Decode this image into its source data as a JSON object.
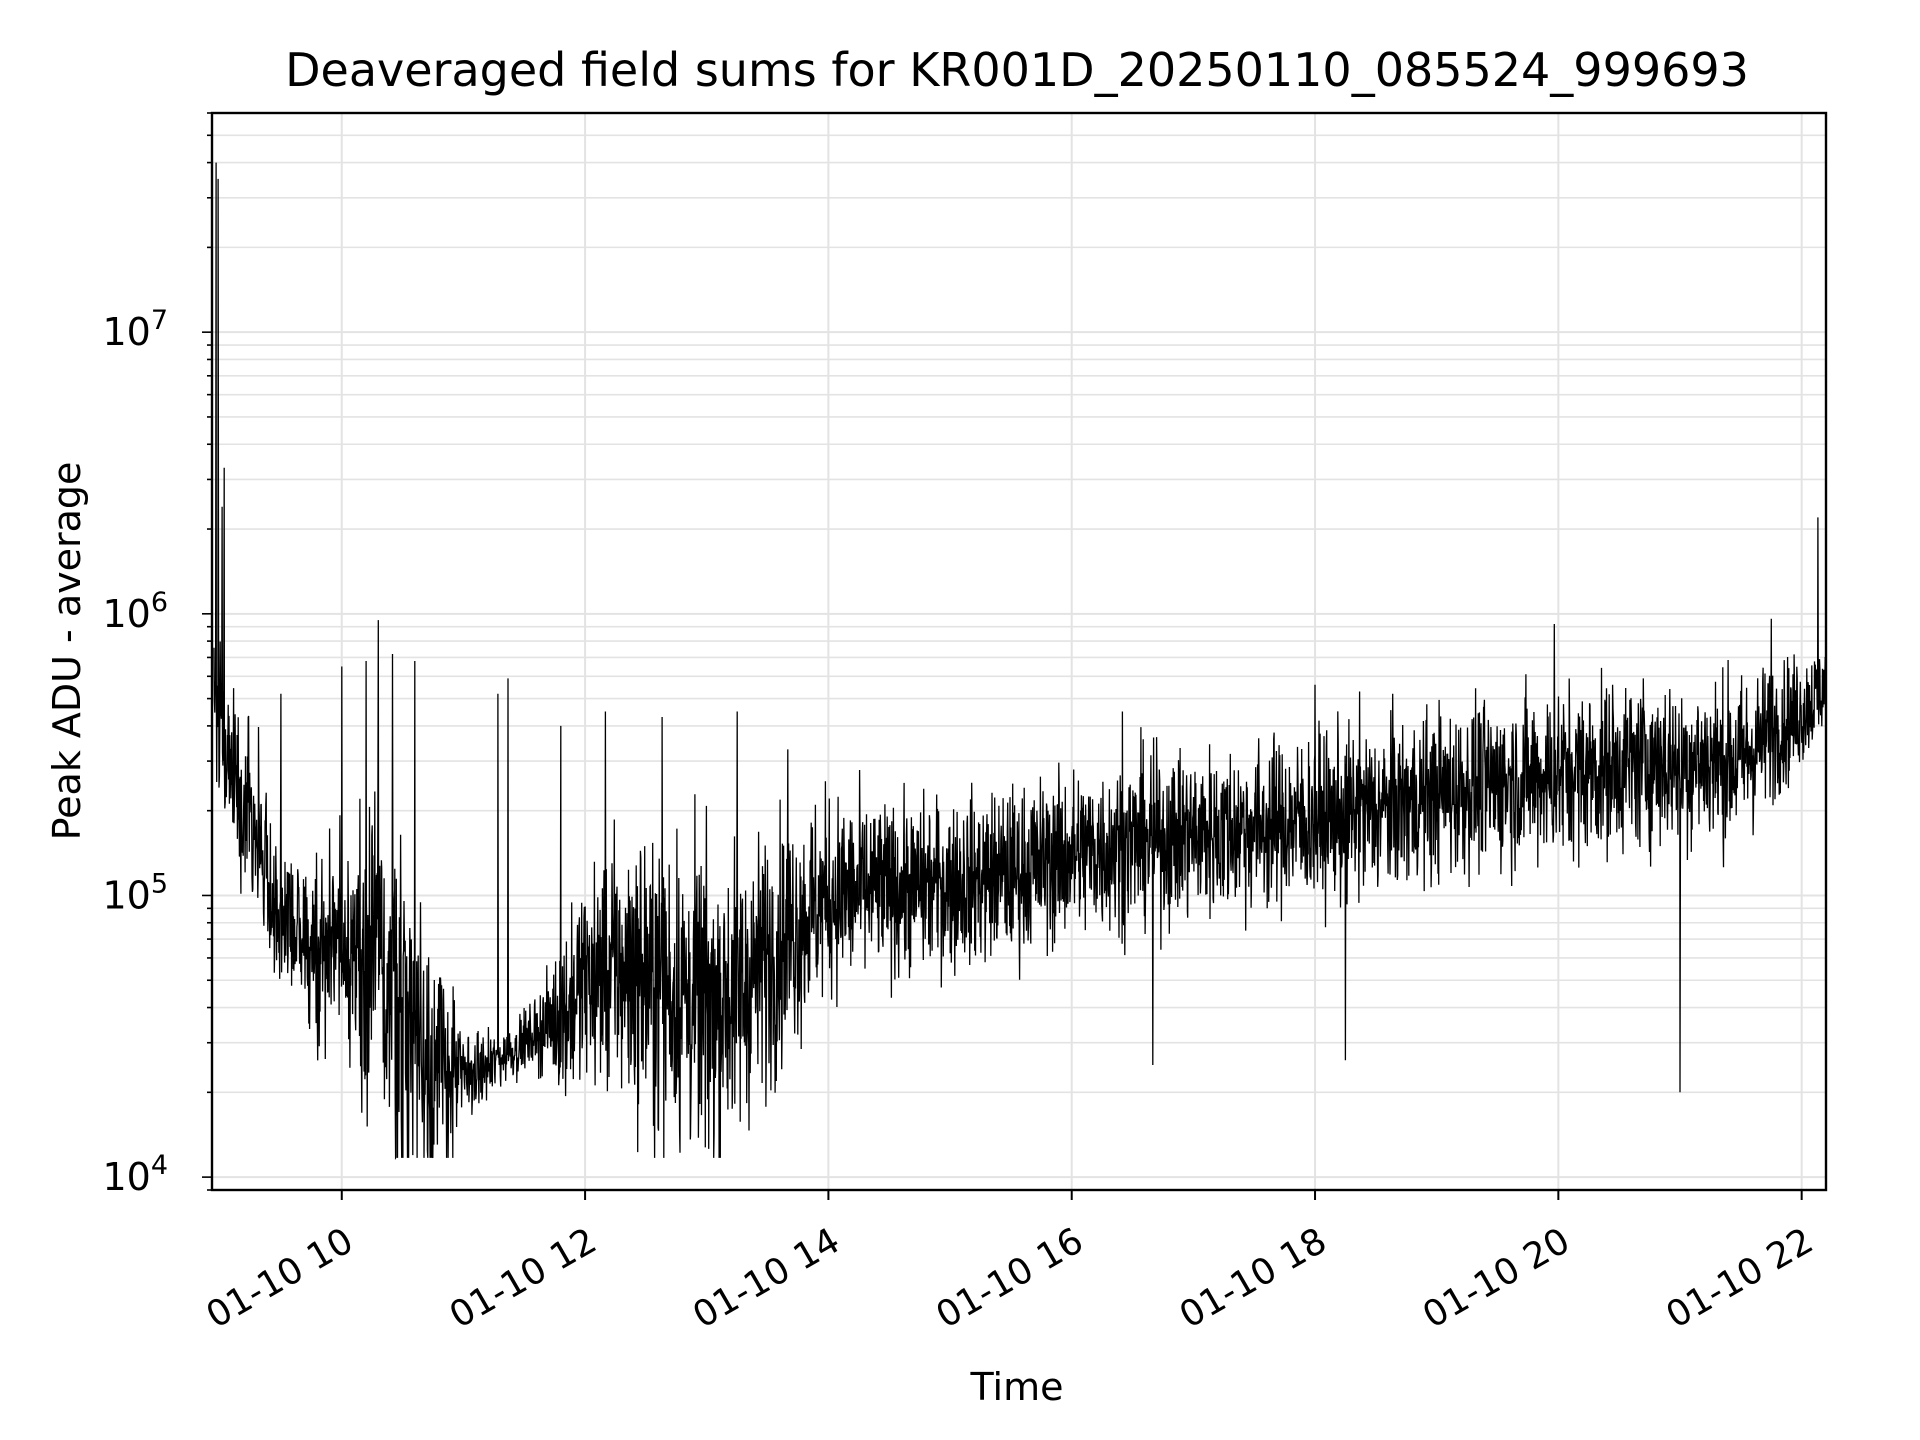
{
  "chart_data": {
    "type": "line",
    "title": "Deaveraged field sums for KR001D_20250110_085524_999693",
    "xlabel": "Time",
    "ylabel": "Peak ADU - average",
    "x_ticks": [
      "01-10 10",
      "01-10 12",
      "01-10 14",
      "01-10 16",
      "01-10 18",
      "01-10 20",
      "01-10 22"
    ],
    "y_ticks": [
      {
        "value": 10000,
        "base": "10",
        "exp": "4"
      },
      {
        "value": 100000,
        "base": "10",
        "exp": "5"
      },
      {
        "value": 1000000,
        "base": "10",
        "exp": "6"
      },
      {
        "value": 10000000,
        "base": "10",
        "exp": "7"
      }
    ],
    "xlim": [
      "2025-01-10 08:56",
      "2025-01-10 22:12"
    ],
    "ylim": [
      9000,
      60000000
    ],
    "yscale": "log",
    "grid": true,
    "line_color": "#000000",
    "series": [
      {
        "x": [
          "2025-01-10 08:56",
          "2025-01-10 09:00",
          "2025-01-10 09:05",
          "2025-01-10 09:10",
          "2025-01-10 09:15",
          "2025-01-10 09:20",
          "2025-01-10 09:30",
          "2025-01-10 09:40",
          "2025-01-10 09:50",
          "2025-01-10 10:00",
          "2025-01-10 10:10",
          "2025-01-10 10:20",
          "2025-01-10 10:30",
          "2025-01-10 10:40",
          "2025-01-10 10:50",
          "2025-01-10 11:00",
          "2025-01-10 11:10",
          "2025-01-10 11:20",
          "2025-01-10 11:30",
          "2025-01-10 11:40",
          "2025-01-10 11:50",
          "2025-01-10 12:00",
          "2025-01-10 12:15",
          "2025-01-10 12:30",
          "2025-01-10 12:45",
          "2025-01-10 13:00",
          "2025-01-10 13:15",
          "2025-01-10 13:30",
          "2025-01-10 13:45",
          "2025-01-10 14:00",
          "2025-01-10 14:30",
          "2025-01-10 15:00",
          "2025-01-10 15:30",
          "2025-01-10 16:00",
          "2025-01-10 16:30",
          "2025-01-10 17:00",
          "2025-01-10 17:30",
          "2025-01-10 18:00",
          "2025-01-10 18:30",
          "2025-01-10 19:00",
          "2025-01-10 19:30",
          "2025-01-10 20:00",
          "2025-01-10 20:30",
          "2025-01-10 21:00",
          "2025-01-10 21:30",
          "2025-01-10 21:45",
          "2025-01-10 22:00",
          "2025-01-10 22:12"
        ],
        "y": [
          600000,
          450000,
          280000,
          230000,
          200000,
          150000,
          75000,
          70000,
          65000,
          72000,
          60000,
          55000,
          40000,
          28000,
          24000,
          23000,
          24000,
          27000,
          30000,
          34000,
          38000,
          50000,
          55000,
          50000,
          45000,
          40000,
          45000,
          60000,
          80000,
          100000,
          105000,
          110000,
          120000,
          140000,
          155000,
          165000,
          175000,
          185000,
          200000,
          230000,
          250000,
          270000,
          290000,
          300000,
          300000,
          380000,
          450000,
          560000
        ],
        "amplitude": [
          0.25,
          0.35,
          0.35,
          0.3,
          0.3,
          0.3,
          0.25,
          0.3,
          0.35,
          0.35,
          0.45,
          0.6,
          0.65,
          0.55,
          0.4,
          0.15,
          0.12,
          0.1,
          0.1,
          0.15,
          0.3,
          0.35,
          0.45,
          0.5,
          0.55,
          0.55,
          0.5,
          0.45,
          0.4,
          0.35,
          0.3,
          0.3,
          0.3,
          0.3,
          0.3,
          0.3,
          0.3,
          0.3,
          0.3,
          0.3,
          0.3,
          0.3,
          0.3,
          0.3,
          0.3,
          0.25,
          0.2,
          0.15
        ]
      }
    ],
    "spikes": [
      {
        "x": "2025-01-10 08:58",
        "y": 40000000
      },
      {
        "x": "2025-01-10 08:59",
        "y": 35000000
      },
      {
        "x": "2025-01-10 09:02",
        "y": 3300000
      },
      {
        "x": "2025-01-10 09:01",
        "y": 2400000
      },
      {
        "x": "2025-01-10 09:30",
        "y": 520000
      },
      {
        "x": "2025-01-10 10:00",
        "y": 650000
      },
      {
        "x": "2025-01-10 10:12",
        "y": 680000
      },
      {
        "x": "2025-01-10 10:18",
        "y": 950000
      },
      {
        "x": "2025-01-10 10:25",
        "y": 720000
      },
      {
        "x": "2025-01-10 10:36",
        "y": 680000
      },
      {
        "x": "2025-01-10 11:17",
        "y": 520000
      },
      {
        "x": "2025-01-10 11:22",
        "y": 590000
      },
      {
        "x": "2025-01-10 11:48",
        "y": 400000
      },
      {
        "x": "2025-01-10 12:10",
        "y": 450000
      },
      {
        "x": "2025-01-10 12:38",
        "y": 430000
      },
      {
        "x": "2025-01-10 13:15",
        "y": 450000
      },
      {
        "x": "2025-01-10 13:40",
        "y": 330000
      },
      {
        "x": "2025-01-10 16:25",
        "y": 450000
      },
      {
        "x": "2025-01-10 18:00",
        "y": 560000
      },
      {
        "x": "2025-01-10 18:22",
        "y": 530000
      },
      {
        "x": "2025-01-10 19:58",
        "y": 920000
      },
      {
        "x": "2025-01-10 21:45",
        "y": 960000
      },
      {
        "x": "2025-01-10 22:08",
        "y": 2200000
      },
      {
        "x": "2025-01-10 10:45",
        "y": 13500
      },
      {
        "x": "2025-01-10 12:52",
        "y": 14000
      },
      {
        "x": "2025-01-10 16:40",
        "y": 25000
      },
      {
        "x": "2025-01-10 18:15",
        "y": 26000
      },
      {
        "x": "2025-01-10 21:00",
        "y": 20000
      }
    ]
  }
}
